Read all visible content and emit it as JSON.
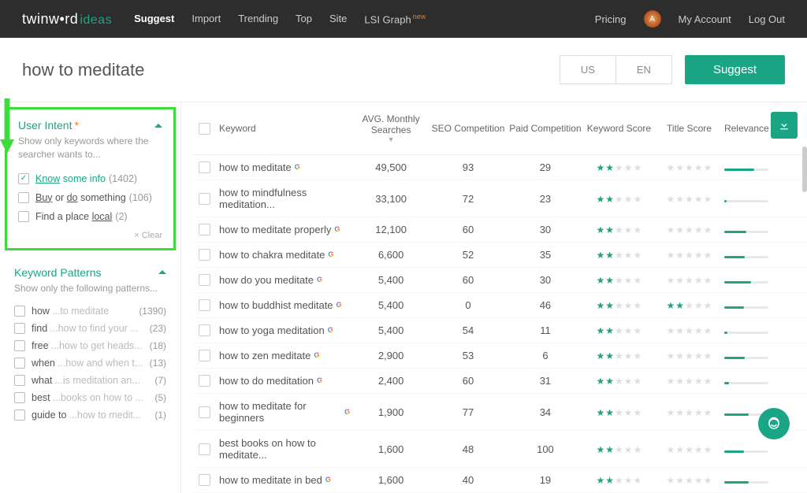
{
  "nav": {
    "logo_main": "twinw•rd",
    "logo_sub": "ideas",
    "links": [
      {
        "label": "Suggest",
        "active": true
      },
      {
        "label": "Import"
      },
      {
        "label": "Trending"
      },
      {
        "label": "Top"
      },
      {
        "label": "Site"
      },
      {
        "label": "LSI Graph",
        "badge": "new"
      }
    ],
    "right": {
      "pricing": "Pricing",
      "avatar_letter": "A",
      "my_account": "My Account",
      "log_out": "Log Out"
    }
  },
  "search": {
    "query": "how to meditate",
    "locale_country": "US",
    "locale_lang": "EN",
    "suggest_label": "Suggest"
  },
  "filters": {
    "user_intent": {
      "title": "User Intent",
      "required": "*",
      "subtitle": "Show only keywords where the searcher wants to...",
      "options": [
        {
          "pre": "Know",
          "post": " some info",
          "count": "(1402)",
          "checked": true
        },
        {
          "pre": "Buy",
          "mid": " or ",
          "pre2": "do",
          "post": " something",
          "count": "(106)"
        },
        {
          "pre_plain": "Find a place ",
          "ul": "local",
          "count": "(2)"
        }
      ],
      "clear": "× Clear"
    },
    "patterns": {
      "title": "Keyword Patterns",
      "subtitle": "Show only the following patterns...",
      "items": [
        {
          "pfx": "how",
          "rest": "...to meditate",
          "cnt": "(1390)"
        },
        {
          "pfx": "find",
          "rest": "...how to find your ...",
          "cnt": "(23)"
        },
        {
          "pfx": "free",
          "rest": "...how to get heads...",
          "cnt": "(18)"
        },
        {
          "pfx": "when",
          "rest": "...how and when t...",
          "cnt": "(13)"
        },
        {
          "pfx": "what",
          "rest": "...is meditation an...",
          "cnt": "(7)"
        },
        {
          "pfx": "best",
          "rest": "...books on how to ...",
          "cnt": "(5)"
        },
        {
          "pfx": "guide to",
          "rest": "...how to medit...",
          "cnt": "(1)"
        }
      ]
    }
  },
  "table": {
    "headers": {
      "keyword": "Keyword",
      "avg": "AVG. Monthly Searches",
      "seo": "SEO Competition",
      "paid": "Paid Competition",
      "kscore": "Keyword Score",
      "tscore": "Title Score",
      "relevance": "Relevance"
    },
    "rows": [
      {
        "kw": "how to meditate",
        "g": true,
        "avg": "49,500",
        "seo": "93",
        "paid": "29",
        "ks": 2,
        "ts": 0,
        "rel": 68
      },
      {
        "kw": "how to mindfulness meditation...",
        "avg": "33,100",
        "seo": "72",
        "paid": "23",
        "ks": 2,
        "ts": 0,
        "rel": 6
      },
      {
        "kw": "how to meditate properly",
        "g": true,
        "avg": "12,100",
        "seo": "60",
        "paid": "30",
        "ks": 2,
        "ts": 0,
        "rel": 50
      },
      {
        "kw": "how to chakra meditate",
        "g": true,
        "avg": "6,600",
        "seo": "52",
        "paid": "35",
        "ks": 2,
        "ts": 0,
        "rel": 46
      },
      {
        "kw": "how do you meditate",
        "g": true,
        "avg": "5,400",
        "seo": "60",
        "paid": "30",
        "ks": 2,
        "ts": 0,
        "rel": 60
      },
      {
        "kw": "how to buddhist meditate",
        "g": true,
        "avg": "5,400",
        "seo": "0",
        "paid": "46",
        "ks": 2,
        "ts": 2,
        "rel": 45
      },
      {
        "kw": "how to yoga meditation",
        "g": true,
        "avg": "5,400",
        "seo": "54",
        "paid": "11",
        "ks": 2,
        "ts": 0,
        "rel": 8
      },
      {
        "kw": "how to zen meditate",
        "g": true,
        "avg": "2,900",
        "seo": "53",
        "paid": "6",
        "ks": 2,
        "ts": 0,
        "rel": 46
      },
      {
        "kw": "how to do meditation",
        "g": true,
        "avg": "2,400",
        "seo": "60",
        "paid": "31",
        "ks": 2,
        "ts": 0,
        "rel": 10
      },
      {
        "kw": "how to meditate for beginners",
        "g": true,
        "avg": "1,900",
        "seo": "77",
        "paid": "34",
        "ks": 2,
        "ts": 0,
        "rel": 55
      },
      {
        "kw": "best books on how to meditate...",
        "avg": "1,600",
        "seo": "48",
        "paid": "100",
        "ks": 2,
        "ts": 0,
        "rel": 45
      },
      {
        "kw": "how to meditate in bed",
        "g": true,
        "avg": "1,600",
        "seo": "40",
        "paid": "19",
        "ks": 2,
        "ts": 0,
        "rel": 55
      }
    ]
  },
  "colors": {
    "accent": "#1aa585",
    "highlight_border": "#3cdc3c"
  }
}
